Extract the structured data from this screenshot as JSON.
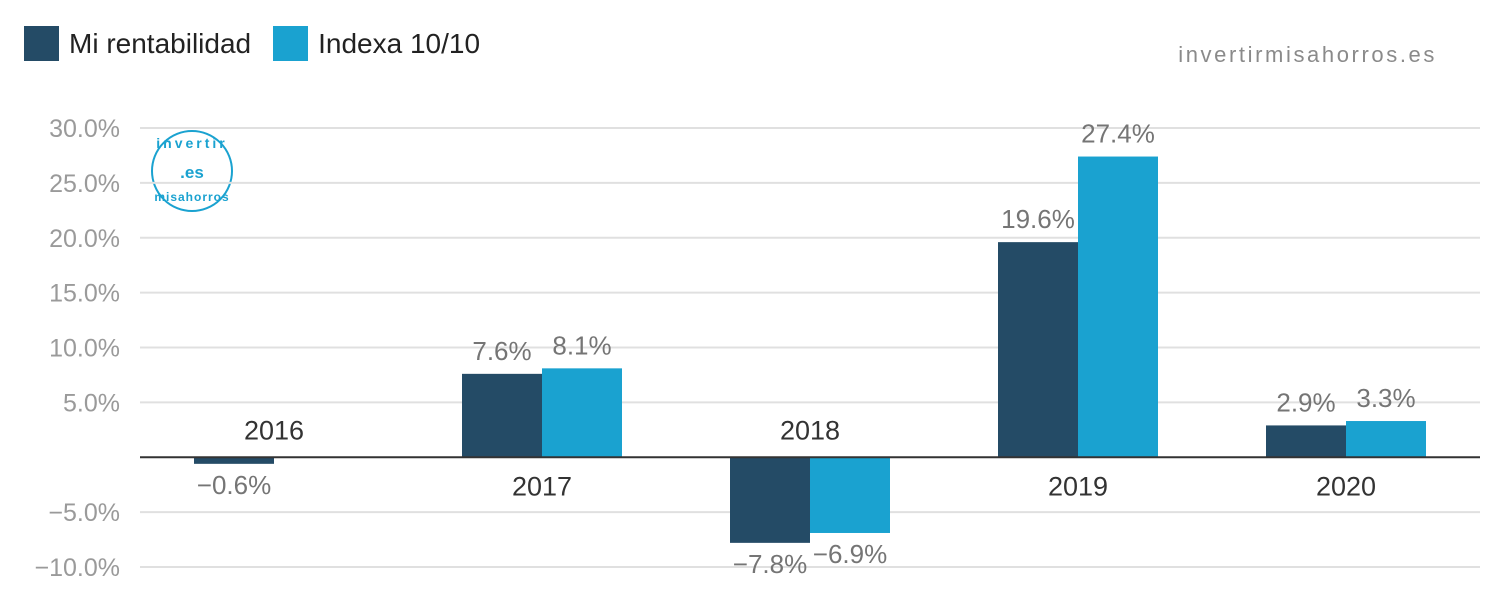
{
  "watermark": "invertirmisahorros.es",
  "logo_text": "invertir .es misahorros",
  "colors": {
    "mine": "#244b66",
    "indexa": "#1aa2d0",
    "grid": "#e0e0e0",
    "axis": "#333333"
  },
  "chart_data": {
    "type": "bar",
    "categories": [
      "2016",
      "2017",
      "2018",
      "2019",
      "2020"
    ],
    "series": [
      {
        "name": "Mi rentabilidad",
        "values": [
          -0.6,
          7.6,
          -7.8,
          19.6,
          2.9
        ],
        "labels": [
          "−0.6%",
          "7.6%",
          "−7.8%",
          "19.6%",
          "2.9%"
        ]
      },
      {
        "name": "Indexa 10/10",
        "values": [
          null,
          8.1,
          -6.9,
          27.4,
          3.3
        ],
        "labels": [
          "",
          "8.1%",
          "−6.9%",
          "27.4%",
          "3.3%"
        ]
      }
    ],
    "yticks": [
      30,
      25,
      20,
      15,
      10,
      5,
      -5,
      -10
    ],
    "ytick_labels": [
      "30.0%",
      "25.0%",
      "20.0%",
      "15.0%",
      "10.0%",
      "5.0%",
      "−5.0%",
      "−10.0%"
    ],
    "ylim": [
      -10,
      30
    ],
    "legend": "top-left",
    "grid": true
  }
}
